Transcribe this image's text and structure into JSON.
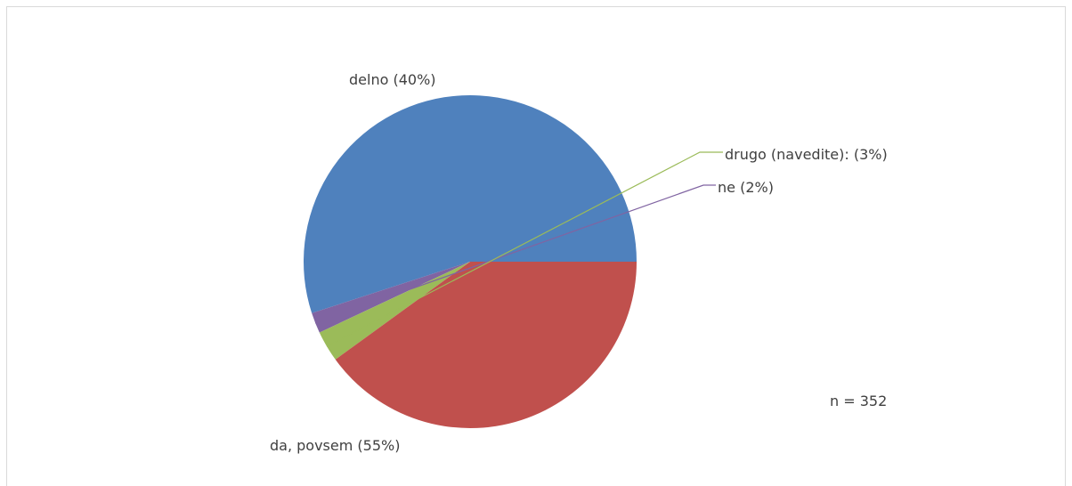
{
  "chart_data": {
    "type": "pie",
    "title": "",
    "slices": [
      {
        "label": "da, povsem (55%)",
        "value": 55,
        "color": "#4f81bd"
      },
      {
        "label": "ne (2%)",
        "value": 2,
        "color": "#8064a2"
      },
      {
        "label": "drugo (navedite): (3%)",
        "value": 3,
        "color": "#9bbb59"
      },
      {
        "label": "delno (40%)",
        "value": 40,
        "color": "#c0504d"
      }
    ],
    "legend": "none",
    "annotation": "n = 352"
  }
}
